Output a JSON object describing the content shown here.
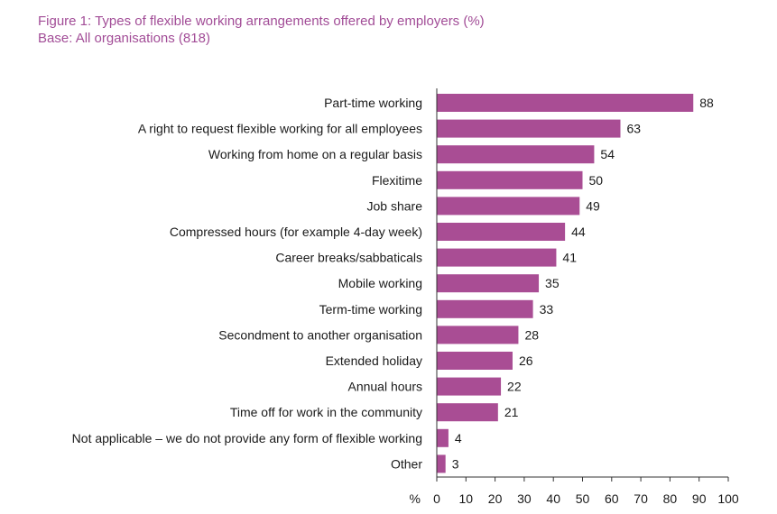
{
  "title": "Figure 1: Types of flexible working arrangements offered by employers (%)",
  "subtitle": "Base: All organisations (818)",
  "colors": {
    "bar": "#a94d94",
    "title": "#a24d97",
    "axis": "#333333"
  },
  "chart_data": {
    "type": "bar",
    "orientation": "horizontal",
    "title": "Figure 1: Types of flexible working arrangements offered by employers (%)",
    "subtitle": "Base: All organisations (818)",
    "xlabel": "%",
    "ylabel": "",
    "xlim": [
      0,
      100
    ],
    "ticks": [
      0,
      10,
      20,
      30,
      40,
      50,
      60,
      70,
      80,
      90,
      100
    ],
    "grid": false,
    "categories": [
      "Part-time working",
      "A right to request flexible working for all employees",
      "Working from home on a regular basis",
      "Flexitime",
      "Job share",
      "Compressed hours (for example 4-day week)",
      "Career breaks/sabbaticals",
      "Mobile working",
      "Term-time working",
      "Secondment to another organisation",
      "Extended holiday",
      "Annual hours",
      "Time off for work in the community",
      "Not applicable – we do not provide any form of flexible working",
      "Other"
    ],
    "values": [
      88,
      63,
      54,
      50,
      49,
      44,
      41,
      35,
      33,
      28,
      26,
      22,
      21,
      4,
      3
    ]
  }
}
